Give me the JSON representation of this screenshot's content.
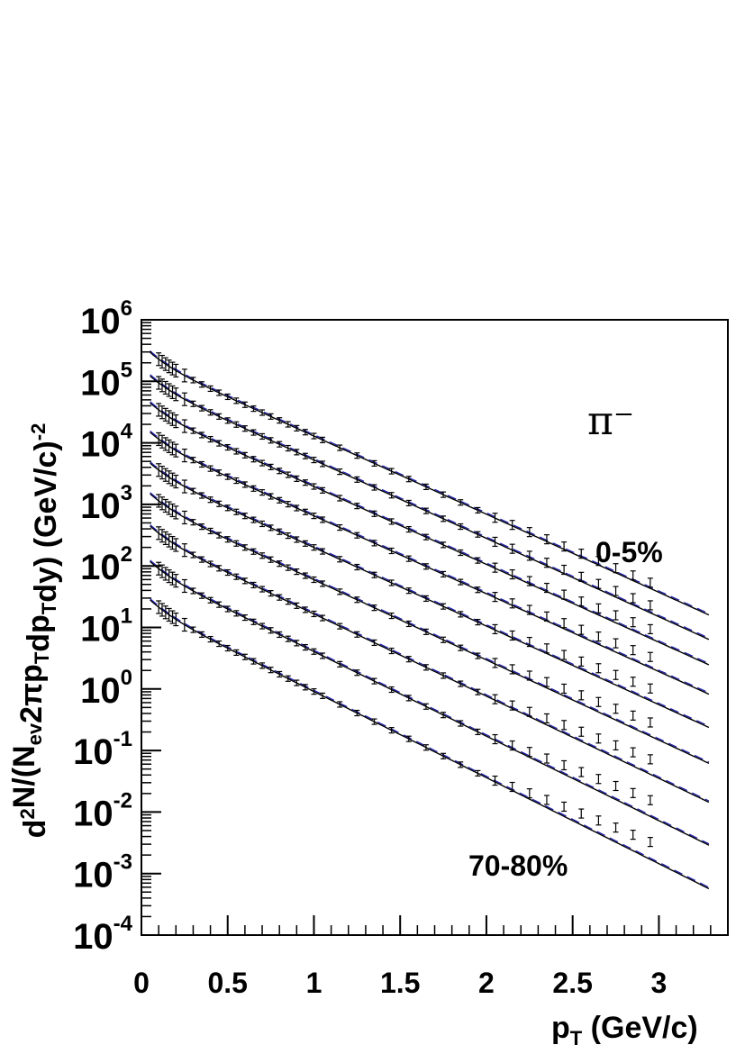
{
  "chart_data": {
    "type": "scatter",
    "x_axis": {
      "label_main": "p",
      "label_sub": "T",
      "label_rest": " (GeV/c)",
      "lim": [
        0,
        3.4
      ],
      "ticks": [
        0,
        0.5,
        1,
        1.5,
        2,
        2.5,
        3
      ],
      "tick_labels": [
        "0",
        "0.5",
        "1",
        "1.5",
        "2",
        "2.5",
        "3"
      ]
    },
    "y_axis": {
      "scale": "log",
      "lim": [
        0.0001,
        1000000
      ],
      "exponents": [
        -4,
        -3,
        -2,
        -1,
        0,
        1,
        2,
        3,
        4,
        5,
        6
      ],
      "tick_base": "10",
      "label_parts": [
        {
          "t": "d",
          "s": "n"
        },
        {
          "t": "2",
          "s": "sup"
        },
        {
          "t": "N/(N",
          "s": "n"
        },
        {
          "t": "ev",
          "s": "sub"
        },
        {
          "t": "2",
          "s": "n"
        },
        {
          "t": "π",
          "s": "n"
        },
        {
          "t": "p",
          "s": "n"
        },
        {
          "t": "T",
          "s": "sub"
        },
        {
          "t": "dp",
          "s": "n"
        },
        {
          "t": "T",
          "s": "sub"
        },
        {
          "t": "dy) (GeV/c)",
          "s": "n"
        },
        {
          "t": "-2",
          "s": "sup"
        }
      ]
    },
    "annotations": {
      "particle": "π⁻",
      "top_label": "0-5%",
      "bottom_label": "70-80%"
    },
    "colors": {
      "fit": "#1a1aa8",
      "data": "#000000"
    },
    "x": [
      0.1,
      0.12,
      0.14,
      0.16,
      0.18,
      0.2,
      0.25,
      0.3,
      0.35,
      0.4,
      0.45,
      0.5,
      0.55,
      0.6,
      0.65,
      0.7,
      0.75,
      0.8,
      0.85,
      0.9,
      0.95,
      1.0,
      1.05,
      1.15,
      1.25,
      1.35,
      1.45,
      1.55,
      1.65,
      1.75,
      1.85,
      1.95,
      2.05,
      2.15,
      2.25,
      2.35,
      2.45,
      2.55,
      2.65,
      2.75,
      2.85,
      2.95
    ],
    "series": [
      {
        "A": 400000,
        "k1": 12.0,
        "k2": 3.25,
        "fit_end": 15.5
      },
      {
        "A": 165000,
        "k1": 12.0,
        "k2": 3.28,
        "fit_end": 6.2
      },
      {
        "A": 60000,
        "k1": 12.0,
        "k2": 3.3,
        "fit_end": 2.4
      },
      {
        "A": 20000,
        "k1": 12.0,
        "k2": 3.38,
        "fit_end": 0.8
      },
      {
        "A": 6300,
        "k1": 12.0,
        "k2": 3.45,
        "fit_end": 0.23
      },
      {
        "A": 2000,
        "k1": 12.0,
        "k2": 3.5,
        "fit_end": 0.06
      },
      {
        "A": 600,
        "k1": 12.0,
        "k2": 3.6,
        "fit_end": 0.014
      },
      {
        "A": 160,
        "k1": 12.0,
        "k2": 3.7,
        "fit_end": 0.0028
      },
      {
        "A": 38,
        "k1": 12.0,
        "k2": 3.78,
        "fit_end": 0.00055
      }
    ]
  }
}
